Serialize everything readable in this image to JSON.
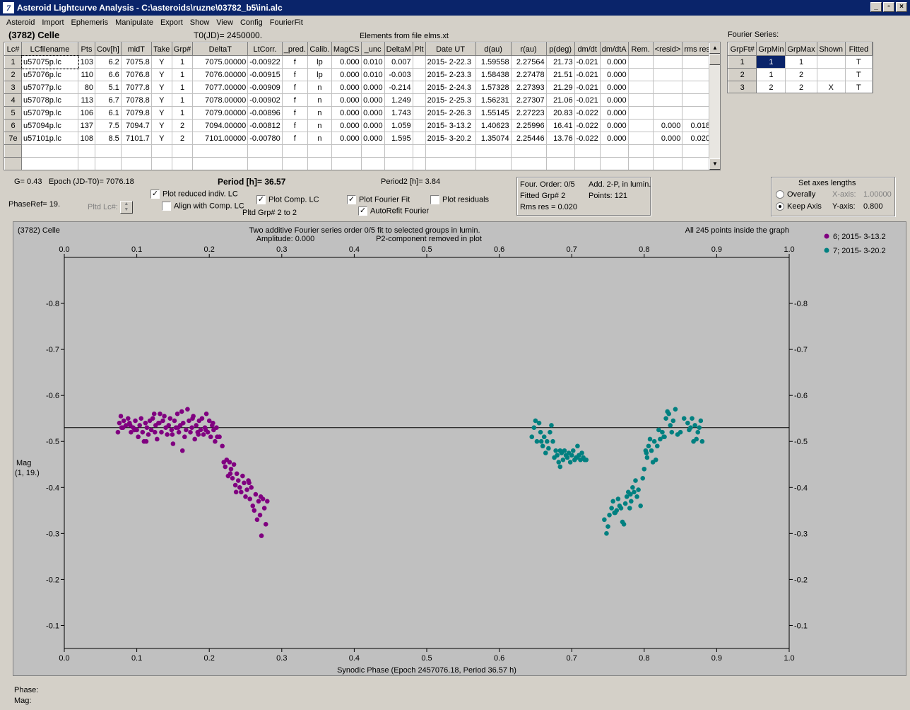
{
  "window": {
    "title": "Asteroid Lightcurve Analysis - C:\\asteroids\\ruzne\\03782_b5\\ini.alc",
    "icon": "lightcurve-app-icon",
    "controls": [
      "_",
      "×"
    ]
  },
  "menu": [
    "Asteroid",
    "Import",
    "Ephemeris",
    "Manipulate",
    "Export",
    "Show",
    "View",
    "Config",
    "FourierFit"
  ],
  "header": {
    "asteroid": "(3782) Celle",
    "t0": "T0(JD)= 2450000.",
    "elements": "Elements from file elms.xt",
    "fourier_label": "Fourier Series:"
  },
  "lc_table": {
    "columns": [
      "Lc#",
      "LCfilename",
      "Pts",
      "Cov[h]",
      "midT",
      "Take",
      "Grp#",
      "DeltaT",
      "LtCorr.",
      "_pred.",
      "Calib.",
      "MagCS",
      "_unc",
      "DeltaM",
      "Plt",
      "Date UT",
      "d(au)",
      "r(au)",
      "p(deg)",
      "dm/dt",
      "dm/dtA",
      "Rem.",
      "<resid>",
      "rms res"
    ],
    "rows": [
      [
        "1",
        "u57075p.lc",
        "103",
        "6.2",
        "7075.8",
        "Y",
        "1",
        "7075.00000",
        "-0.00922",
        "f",
        "lp",
        "0.000",
        "0.010",
        "0.007",
        "",
        "2015- 2-22.3",
        "1.59558",
        "2.27564",
        "21.73",
        "-0.021",
        "0.000",
        "",
        "",
        ""
      ],
      [
        "2",
        "u57076p.lc",
        "110",
        "6.6",
        "7076.8",
        "Y",
        "1",
        "7076.00000",
        "-0.00915",
        "f",
        "lp",
        "0.000",
        "0.010",
        "-0.003",
        "",
        "2015- 2-23.3",
        "1.58438",
        "2.27478",
        "21.51",
        "-0.021",
        "0.000",
        "",
        "",
        ""
      ],
      [
        "3",
        "u57077p.lc",
        "80",
        "5.1",
        "7077.8",
        "Y",
        "1",
        "7077.00000",
        "-0.00909",
        "f",
        "n",
        "0.000",
        "0.000",
        "-0.214",
        "",
        "2015- 2-24.3",
        "1.57328",
        "2.27393",
        "21.29",
        "-0.021",
        "0.000",
        "",
        "",
        ""
      ],
      [
        "4",
        "u57078p.lc",
        "113",
        "6.7",
        "7078.8",
        "Y",
        "1",
        "7078.00000",
        "-0.00902",
        "f",
        "n",
        "0.000",
        "0.000",
        "1.249",
        "",
        "2015- 2-25.3",
        "1.56231",
        "2.27307",
        "21.06",
        "-0.021",
        "0.000",
        "",
        "",
        ""
      ],
      [
        "5",
        "u57079p.lc",
        "106",
        "6.1",
        "7079.8",
        "Y",
        "1",
        "7079.00000",
        "-0.00896",
        "f",
        "n",
        "0.000",
        "0.000",
        "1.743",
        "",
        "2015- 2-26.3",
        "1.55145",
        "2.27223",
        "20.83",
        "-0.022",
        "0.000",
        "",
        "",
        ""
      ],
      [
        "6",
        "u57094p.lc",
        "137",
        "7.5",
        "7094.7",
        "Y",
        "2",
        "7094.00000",
        "-0.00812",
        "f",
        "n",
        "0.000",
        "0.000",
        "1.059",
        "",
        "2015- 3-13.2",
        "1.40623",
        "2.25996",
        "16.41",
        "-0.022",
        "0.000",
        "",
        "0.000",
        "0.018"
      ],
      [
        "7e",
        "u57101p.lc",
        "108",
        "8.5",
        "7101.7",
        "Y",
        "2",
        "7101.00000",
        "-0.00780",
        "f",
        "n",
        "0.000",
        "0.000",
        "1.595",
        "",
        "2015- 3-20.2",
        "1.35074",
        "2.25446",
        "13.76",
        "-0.022",
        "0.000",
        "",
        "0.000",
        "0.020"
      ]
    ]
  },
  "fourier_table": {
    "columns": [
      "GrpFt#",
      "GrpMin",
      "GrpMax",
      "Shown",
      "Fitted"
    ],
    "rows": [
      [
        "1",
        "1",
        "1",
        "",
        "T"
      ],
      [
        "2",
        "1",
        "2",
        "",
        "T"
      ],
      [
        "3",
        "2",
        "2",
        "X",
        "T"
      ]
    ]
  },
  "controls": {
    "g": "G= 0.43",
    "epoch": "Epoch (JD-T0)= 7076.18",
    "period": "Period [h]= 36.57",
    "period2": "Period2 [h]= 3.84",
    "phaseref": "PhaseRef= 19.",
    "pltd_lc": "Pltd Lc#:",
    "plot_reduced": "Plot reduced indiv. LC",
    "align_comp": "Align with Comp. LC",
    "plot_comp": "Plot Comp. LC",
    "pltd_grp": "Pltd Grp#  2  to   2",
    "plot_fourier": "Plot Fourier Fit",
    "autorefit": "AutoRefit Fourier",
    "plot_residuals": "Plot residuals",
    "four_order": "Four. Order:  0/5",
    "add_2p": "Add. 2-P, in lumin.",
    "fitted_grp": "Fitted Grp# 2",
    "points": "Points: 121",
    "rms": "Rms res     = 0.020",
    "axes_title": "Set axes lengths",
    "overally": "Overally",
    "keep_axis": "Keep Axis",
    "x_axis_label": "X-axis:",
    "x_axis_value": "1.00000",
    "y_axis_label": "Y-axis:",
    "y_axis_value": "0.800"
  },
  "plot_text": {
    "name": "(3782) Celle",
    "title1": "Two additive Fourier series order 0/5 fit to selected groups in lumin.",
    "amplitude": "Amplitude: 0.000",
    "p2": "P2-component removed in plot",
    "allpoints": "All 245 points inside the graph",
    "ylabel1": "Mag",
    "ylabel2": "(1, 19.)",
    "status_phase": "Phase:",
    "status_mag": "Mag:"
  },
  "chart_data": {
    "type": "scatter",
    "xlabel": "Synodic Phase (Epoch 2457076.18, Period 36.57 h)",
    "ylabel": "Mag (1, 19.)",
    "xlim": [
      0.0,
      1.0
    ],
    "ylim": [
      -0.9,
      -0.05
    ],
    "y_inverted": true,
    "x_ticks": [
      "0.0",
      "0.1",
      "0.2",
      "0.3",
      "0.4",
      "0.5",
      "0.6",
      "0.7",
      "0.8",
      "0.9",
      "1.0"
    ],
    "y_ticks": [
      "-0.8",
      "-0.7",
      "-0.6",
      "-0.5",
      "-0.4",
      "-0.3",
      "-0.2",
      "-0.1"
    ],
    "fit_line_y": -0.53,
    "legend_position": "top-right",
    "series": [
      {
        "name": "6; 2015- 3-13.2",
        "color": "#800080",
        "x": [
          0.074,
          0.076,
          0.078,
          0.079,
          0.082,
          0.085,
          0.088,
          0.09,
          0.092,
          0.095,
          0.098,
          0.1,
          0.102,
          0.104,
          0.106,
          0.108,
          0.11,
          0.112,
          0.114,
          0.116,
          0.118,
          0.12,
          0.122,
          0.124,
          0.126,
          0.128,
          0.13,
          0.132,
          0.134,
          0.136,
          0.138,
          0.14,
          0.142,
          0.144,
          0.146,
          0.148,
          0.15,
          0.152,
          0.154,
          0.156,
          0.158,
          0.16,
          0.162,
          0.164,
          0.166,
          0.168,
          0.17,
          0.172,
          0.174,
          0.176,
          0.178,
          0.18,
          0.182,
          0.184,
          0.186,
          0.188,
          0.19,
          0.192,
          0.194,
          0.196,
          0.198,
          0.2,
          0.202,
          0.204,
          0.206,
          0.208,
          0.21,
          0.214,
          0.218,
          0.22,
          0.222,
          0.224,
          0.226,
          0.228,
          0.23,
          0.232,
          0.234,
          0.236,
          0.238,
          0.24,
          0.242,
          0.244,
          0.246,
          0.248,
          0.25,
          0.252,
          0.254,
          0.256,
          0.258,
          0.26,
          0.262,
          0.264,
          0.266,
          0.268,
          0.27,
          0.272,
          0.274,
          0.276,
          0.278,
          0.28,
          0.081,
          0.097,
          0.113,
          0.131,
          0.149,
          0.163,
          0.177,
          0.195,
          0.211,
          0.237,
          0.255,
          0.271,
          0.091,
          0.125,
          0.157,
          0.185,
          0.205,
          0.229
        ],
        "y": [
          -0.52,
          -0.54,
          -0.555,
          -0.53,
          -0.545,
          -0.535,
          -0.55,
          -0.54,
          -0.52,
          -0.53,
          -0.545,
          -0.525,
          -0.51,
          -0.535,
          -0.55,
          -0.52,
          -0.5,
          -0.54,
          -0.53,
          -0.515,
          -0.545,
          -0.525,
          -0.55,
          -0.56,
          -0.535,
          -0.505,
          -0.54,
          -0.56,
          -0.52,
          -0.545,
          -0.555,
          -0.53,
          -0.515,
          -0.535,
          -0.55,
          -0.525,
          -0.495,
          -0.545,
          -0.53,
          -0.56,
          -0.52,
          -0.535,
          -0.565,
          -0.54,
          -0.51,
          -0.525,
          -0.57,
          -0.545,
          -0.52,
          -0.53,
          -0.555,
          -0.505,
          -0.535,
          -0.52,
          -0.545,
          -0.525,
          -0.55,
          -0.515,
          -0.53,
          -0.56,
          -0.52,
          -0.545,
          -0.51,
          -0.535,
          -0.525,
          -0.5,
          -0.53,
          -0.51,
          -0.49,
          -0.455,
          -0.445,
          -0.46,
          -0.425,
          -0.455,
          -0.44,
          -0.42,
          -0.45,
          -0.405,
          -0.43,
          -0.415,
          -0.4,
          -0.39,
          -0.425,
          -0.41,
          -0.38,
          -0.395,
          -0.415,
          -0.375,
          -0.4,
          -0.36,
          -0.35,
          -0.385,
          -0.33,
          -0.37,
          -0.34,
          -0.295,
          -0.375,
          -0.355,
          -0.32,
          -0.37,
          -0.53,
          -0.525,
          -0.5,
          -0.54,
          -0.515,
          -0.48,
          -0.55,
          -0.525,
          -0.51,
          -0.39,
          -0.41,
          -0.38,
          -0.535,
          -0.52,
          -0.53,
          -0.515,
          -0.54,
          -0.43
        ]
      },
      {
        "name": "7; 2015- 3-20.2",
        "color": "#008080",
        "x": [
          0.645,
          0.648,
          0.65,
          0.652,
          0.655,
          0.657,
          0.66,
          0.662,
          0.664,
          0.666,
          0.668,
          0.67,
          0.672,
          0.674,
          0.676,
          0.678,
          0.68,
          0.682,
          0.684,
          0.686,
          0.688,
          0.69,
          0.692,
          0.694,
          0.696,
          0.698,
          0.7,
          0.702,
          0.704,
          0.706,
          0.708,
          0.71,
          0.712,
          0.714,
          0.716,
          0.718,
          0.72,
          0.745,
          0.748,
          0.75,
          0.752,
          0.755,
          0.757,
          0.76,
          0.762,
          0.764,
          0.766,
          0.768,
          0.77,
          0.772,
          0.774,
          0.776,
          0.778,
          0.78,
          0.782,
          0.784,
          0.786,
          0.788,
          0.79,
          0.792,
          0.795,
          0.798,
          0.8,
          0.802,
          0.804,
          0.806,
          0.808,
          0.81,
          0.812,
          0.814,
          0.816,
          0.818,
          0.82,
          0.822,
          0.825,
          0.828,
          0.83,
          0.832,
          0.834,
          0.836,
          0.838,
          0.84,
          0.843,
          0.846,
          0.85,
          0.855,
          0.86,
          0.864,
          0.866,
          0.868,
          0.87,
          0.872,
          0.874,
          0.876,
          0.878,
          0.88,
          0.658,
          0.684,
          0.707,
          0.759,
          0.781,
          0.803,
          0.827,
          0.862
        ],
        "y": [
          -0.51,
          -0.53,
          -0.545,
          -0.5,
          -0.54,
          -0.52,
          -0.49,
          -0.51,
          -0.475,
          -0.5,
          -0.485,
          -0.52,
          -0.535,
          -0.5,
          -0.465,
          -0.48,
          -0.47,
          -0.455,
          -0.445,
          -0.475,
          -0.46,
          -0.48,
          -0.47,
          -0.465,
          -0.475,
          -0.455,
          -0.47,
          -0.48,
          -0.46,
          -0.465,
          -0.49,
          -0.47,
          -0.46,
          -0.475,
          -0.465,
          -0.46,
          -0.46,
          -0.33,
          -0.3,
          -0.315,
          -0.34,
          -0.355,
          -0.37,
          -0.345,
          -0.35,
          -0.375,
          -0.36,
          -0.355,
          -0.325,
          -0.32,
          -0.365,
          -0.38,
          -0.39,
          -0.355,
          -0.37,
          -0.4,
          -0.39,
          -0.415,
          -0.38,
          -0.395,
          -0.36,
          -0.42,
          -0.44,
          -0.48,
          -0.465,
          -0.49,
          -0.505,
          -0.48,
          -0.455,
          -0.5,
          -0.46,
          -0.49,
          -0.525,
          -0.505,
          -0.52,
          -0.51,
          -0.55,
          -0.565,
          -0.56,
          -0.535,
          -0.52,
          -0.545,
          -0.57,
          -0.515,
          -0.52,
          -0.55,
          -0.54,
          -0.53,
          -0.55,
          -0.5,
          -0.535,
          -0.505,
          -0.52,
          -0.53,
          -0.545,
          -0.5,
          -0.5,
          -0.48,
          -0.465,
          -0.345,
          -0.385,
          -0.475,
          -0.51,
          -0.525
        ]
      }
    ]
  }
}
